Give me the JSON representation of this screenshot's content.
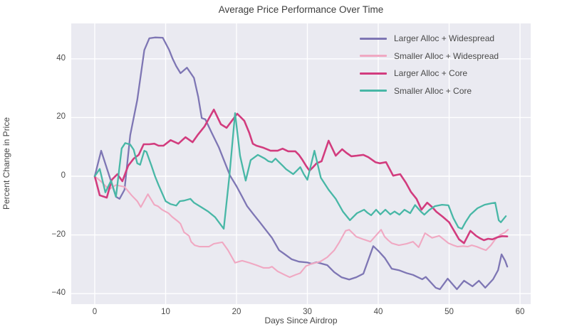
{
  "chart_data": {
    "type": "line",
    "title": "Average Price Performance Over Time",
    "xlabel": "Days Since Airdrop",
    "ylabel": "Percent Change in Price",
    "x_ticks": [
      0,
      10,
      20,
      30,
      40,
      50,
      60
    ],
    "y_ticks": [
      -40,
      -20,
      0,
      20,
      40
    ],
    "xlim": [
      -3.3,
      61.5
    ],
    "ylim": [
      -43.6,
      52
    ],
    "grid": true,
    "plot_background": "#eaeaf1",
    "gridline_color": "#ffffff",
    "legend_position": "upper right",
    "series": [
      {
        "name": "Larger Alloc + Widespread",
        "color": "#7e76b4",
        "width": 2.3,
        "points": [
          [
            0,
            0
          ],
          [
            0.9,
            8.7
          ],
          [
            2,
            0.5
          ],
          [
            3,
            -7
          ],
          [
            3.5,
            -7.7
          ],
          [
            4.2,
            -4.6
          ],
          [
            5,
            14
          ],
          [
            6,
            26
          ],
          [
            7,
            43
          ],
          [
            7.7,
            47
          ],
          [
            8.5,
            47.3
          ],
          [
            9.6,
            47.2
          ],
          [
            10.5,
            43
          ],
          [
            11,
            40
          ],
          [
            11.5,
            37.5
          ],
          [
            12.1,
            35.1
          ],
          [
            13,
            37
          ],
          [
            14,
            33.5
          ],
          [
            14.6,
            27
          ],
          [
            15.1,
            19.8
          ],
          [
            15.6,
            19.4
          ],
          [
            16.5,
            14.8
          ],
          [
            17.5,
            9.9
          ],
          [
            18.3,
            5
          ],
          [
            19.1,
            0.2
          ],
          [
            20,
            -3.4
          ],
          [
            20.8,
            -7
          ],
          [
            21.5,
            -10.2
          ],
          [
            22.4,
            -13
          ],
          [
            23.3,
            -15.7
          ],
          [
            24.2,
            -18.5
          ],
          [
            25,
            -21
          ],
          [
            26,
            -25.2
          ],
          [
            26.7,
            -26.4
          ],
          [
            27.8,
            -28.3
          ],
          [
            28.8,
            -29.1
          ],
          [
            30,
            -29.4
          ],
          [
            30.6,
            -29.8
          ],
          [
            31.3,
            -29.3
          ],
          [
            32.8,
            -30.3
          ],
          [
            33.8,
            -32.7
          ],
          [
            34.8,
            -34.4
          ],
          [
            35.9,
            -35.2
          ],
          [
            36.9,
            -34.4
          ],
          [
            37.9,
            -33.2
          ],
          [
            39.3,
            -23.8
          ],
          [
            40,
            -25.4
          ],
          [
            40.9,
            -27.8
          ],
          [
            41.9,
            -31.5
          ],
          [
            42.9,
            -32
          ],
          [
            44,
            -33
          ],
          [
            44.9,
            -33.6
          ],
          [
            46.2,
            -35.1
          ],
          [
            46.7,
            -34.3
          ],
          [
            48.1,
            -38
          ],
          [
            48.7,
            -38.5
          ],
          [
            49.8,
            -34.9
          ],
          [
            51.1,
            -38.5
          ],
          [
            52.1,
            -35.6
          ],
          [
            53.3,
            -37.5
          ],
          [
            54.2,
            -35.6
          ],
          [
            55.1,
            -38
          ],
          [
            56.2,
            -35.1
          ],
          [
            56.9,
            -32
          ],
          [
            57.4,
            -26.6
          ],
          [
            57.9,
            -28.8
          ],
          [
            58.2,
            -30.8
          ]
        ]
      },
      {
        "name": "Smaller Alloc + Widespread",
        "color": "#f0a8c2",
        "width": 2.1,
        "points": [
          [
            0,
            0
          ],
          [
            1,
            -2
          ],
          [
            2,
            -4.5
          ],
          [
            3,
            -3
          ],
          [
            4.2,
            -3.6
          ],
          [
            5.2,
            -6.5
          ],
          [
            6,
            -8.5
          ],
          [
            6.5,
            -10.5
          ],
          [
            7.5,
            -6.1
          ],
          [
            8.4,
            -9.7
          ],
          [
            8.9,
            -10.2
          ],
          [
            9.5,
            -11.4
          ],
          [
            10.4,
            -12.6
          ],
          [
            10.9,
            -13.8
          ],
          [
            11.8,
            -15.5
          ],
          [
            12.1,
            -16.2
          ],
          [
            12.6,
            -19.1
          ],
          [
            13.3,
            -20.3
          ],
          [
            13.6,
            -22.3
          ],
          [
            14.1,
            -23.5
          ],
          [
            14.8,
            -24
          ],
          [
            16.1,
            -24
          ],
          [
            16.8,
            -23
          ],
          [
            18,
            -22.5
          ],
          [
            18.8,
            -25.2
          ],
          [
            19.8,
            -29.5
          ],
          [
            20.3,
            -29.1
          ],
          [
            20.8,
            -28.8
          ],
          [
            21.8,
            -29.5
          ],
          [
            22.8,
            -30.3
          ],
          [
            23.8,
            -31.2
          ],
          [
            24.6,
            -31.2
          ],
          [
            25,
            -30.8
          ],
          [
            25.8,
            -32.4
          ],
          [
            26.8,
            -33.6
          ],
          [
            27.5,
            -34.4
          ],
          [
            28.3,
            -33.6
          ],
          [
            29,
            -33
          ],
          [
            29.8,
            -30.6
          ],
          [
            30.6,
            -29.8
          ],
          [
            31.8,
            -29.1
          ],
          [
            32.8,
            -27.6
          ],
          [
            33.8,
            -25.2
          ],
          [
            34.5,
            -22.5
          ],
          [
            35.4,
            -18.6
          ],
          [
            35.9,
            -18.2
          ],
          [
            36.9,
            -20.6
          ],
          [
            37.9,
            -21.5
          ],
          [
            38.9,
            -22.3
          ],
          [
            40.4,
            -18.2
          ],
          [
            40.9,
            -20.6
          ],
          [
            41.4,
            -21.8
          ],
          [
            41.9,
            -22.8
          ],
          [
            42.9,
            -23.5
          ],
          [
            44,
            -23
          ],
          [
            44.9,
            -22.3
          ],
          [
            45.7,
            -24.2
          ],
          [
            46.6,
            -19.4
          ],
          [
            47.6,
            -21
          ],
          [
            48.6,
            -20.3
          ],
          [
            49.9,
            -22.8
          ],
          [
            50.6,
            -23.5
          ],
          [
            51.2,
            -24
          ],
          [
            52,
            -23.8
          ],
          [
            52.6,
            -24
          ],
          [
            53.2,
            -23.5
          ],
          [
            53.9,
            -24
          ],
          [
            54.6,
            -24.7
          ],
          [
            55.2,
            -25.2
          ],
          [
            55.9,
            -23.5
          ],
          [
            56.5,
            -21.5
          ],
          [
            57.2,
            -20
          ],
          [
            57.9,
            -19.1
          ],
          [
            58.3,
            -18.2
          ]
        ]
      },
      {
        "name": "Larger Alloc + Core",
        "color": "#d23c7e",
        "width": 2.6,
        "points": [
          [
            0,
            0
          ],
          [
            0.7,
            -6.5
          ],
          [
            1.7,
            -7.3
          ],
          [
            2.4,
            -1.2
          ],
          [
            3.2,
            0.7
          ],
          [
            3.9,
            -1.7
          ],
          [
            4.7,
            3.5
          ],
          [
            5.5,
            6
          ],
          [
            6.2,
            7.3
          ],
          [
            6.9,
            10.9
          ],
          [
            7.7,
            10.9
          ],
          [
            8.4,
            11.1
          ],
          [
            9,
            10.4
          ],
          [
            9.7,
            10.4
          ],
          [
            10.7,
            12.3
          ],
          [
            11.8,
            11.1
          ],
          [
            12.8,
            13.3
          ],
          [
            13.8,
            11.6
          ],
          [
            14.5,
            14
          ],
          [
            15.5,
            17
          ],
          [
            16.8,
            22.7
          ],
          [
            17.8,
            17.7
          ],
          [
            18.6,
            16.5
          ],
          [
            20.1,
            21.3
          ],
          [
            21.1,
            18.9
          ],
          [
            21.8,
            14.8
          ],
          [
            22.3,
            11.1
          ],
          [
            22.8,
            10.4
          ],
          [
            23.8,
            9.7
          ],
          [
            24.8,
            8.7
          ],
          [
            25.8,
            8.7
          ],
          [
            26.5,
            9.4
          ],
          [
            27.3,
            8.5
          ],
          [
            28.3,
            8.5
          ],
          [
            28.8,
            7.3
          ],
          [
            29.3,
            5.6
          ],
          [
            29.8,
            3.6
          ],
          [
            30.3,
            1.9
          ],
          [
            30.8,
            3.1
          ],
          [
            31.3,
            4.4
          ],
          [
            32,
            5.1
          ],
          [
            33,
            12.1
          ],
          [
            34,
            7
          ],
          [
            34.9,
            9.2
          ],
          [
            35.5,
            8
          ],
          [
            36.2,
            6.8
          ],
          [
            37,
            7
          ],
          [
            37.9,
            7.3
          ],
          [
            38.6,
            6.5
          ],
          [
            39.6,
            4.8
          ],
          [
            40.2,
            4.4
          ],
          [
            41.1,
            4.8
          ],
          [
            42.1,
            0.2
          ],
          [
            43.1,
            0.7
          ],
          [
            43.9,
            -2.2
          ],
          [
            44.6,
            -5.3
          ],
          [
            45.4,
            -7.7
          ],
          [
            46.1,
            -11.4
          ],
          [
            46.9,
            -9
          ],
          [
            47.6,
            -10.5
          ],
          [
            48.2,
            -12.1
          ],
          [
            49.1,
            -13.8
          ],
          [
            50,
            -15.7
          ],
          [
            50.6,
            -18.2
          ],
          [
            51.4,
            -21.5
          ],
          [
            52.1,
            -22.8
          ],
          [
            53,
            -18.6
          ],
          [
            53.8,
            -20.3
          ],
          [
            54.4,
            -21.2
          ],
          [
            54.9,
            -21.8
          ],
          [
            55.5,
            -21.3
          ],
          [
            56.1,
            -21.5
          ],
          [
            56.8,
            -20.8
          ],
          [
            57.5,
            -20.4
          ],
          [
            58.2,
            -20.5
          ]
        ]
      },
      {
        "name": "Smaller Alloc + Core",
        "color": "#48b7a6",
        "width": 2.3,
        "points": [
          [
            0,
            0
          ],
          [
            0.7,
            2.5
          ],
          [
            1.5,
            -5.5
          ],
          [
            2.3,
            -1.5
          ],
          [
            3,
            -7
          ],
          [
            3.8,
            9.5
          ],
          [
            4.3,
            11.3
          ],
          [
            5,
            10.8
          ],
          [
            5.5,
            9
          ],
          [
            6,
            4.4
          ],
          [
            6.4,
            3.9
          ],
          [
            7,
            8.7
          ],
          [
            7.3,
            8.3
          ],
          [
            8,
            3.6
          ],
          [
            8.5,
            0
          ],
          [
            9,
            -3
          ],
          [
            10,
            -8.5
          ],
          [
            10.7,
            -9.5
          ],
          [
            11.5,
            -10
          ],
          [
            12,
            -8.5
          ],
          [
            12.6,
            -8.3
          ],
          [
            13.5,
            -7.7
          ],
          [
            14,
            -9
          ],
          [
            15,
            -10.5
          ],
          [
            16,
            -12
          ],
          [
            17,
            -14
          ],
          [
            18.2,
            -17.9
          ],
          [
            19,
            0
          ],
          [
            19.8,
            21.5
          ],
          [
            20.5,
            7
          ],
          [
            21.3,
            -1.5
          ],
          [
            22,
            5.5
          ],
          [
            23,
            7.3
          ],
          [
            24,
            6
          ],
          [
            24.5,
            5.1
          ],
          [
            25,
            4.8
          ],
          [
            25.5,
            6
          ],
          [
            26,
            4.8
          ],
          [
            26.5,
            3.6
          ],
          [
            27,
            2.4
          ],
          [
            28,
            0.7
          ],
          [
            28.5,
            1.9
          ],
          [
            29,
            3.1
          ],
          [
            29.5,
            0.7
          ],
          [
            30,
            -1.2
          ],
          [
            31,
            8.7
          ],
          [
            31.9,
            -0.5
          ],
          [
            32.4,
            -2.4
          ],
          [
            33,
            -4.6
          ],
          [
            34,
            -7.7
          ],
          [
            35,
            -12
          ],
          [
            36,
            -15
          ],
          [
            37,
            -12.6
          ],
          [
            38,
            -11.4
          ],
          [
            38.5,
            -12.5
          ],
          [
            39,
            -13.3
          ],
          [
            39.7,
            -11.4
          ],
          [
            40.3,
            -13
          ],
          [
            41,
            -11.4
          ],
          [
            41.7,
            -13
          ],
          [
            42.3,
            -12
          ],
          [
            43,
            -13.1
          ],
          [
            43.7,
            -11.4
          ],
          [
            44.5,
            -12.6
          ],
          [
            45.2,
            -9.8
          ],
          [
            46,
            -12
          ],
          [
            46.5,
            -13.1
          ],
          [
            47.2,
            -11.5
          ],
          [
            48,
            -10.2
          ],
          [
            49,
            -9.7
          ],
          [
            49.9,
            -9.9
          ],
          [
            50.6,
            -14.3
          ],
          [
            51.3,
            -17.4
          ],
          [
            51.8,
            -17.9
          ],
          [
            52.3,
            -15.7
          ],
          [
            53,
            -13.1
          ],
          [
            54,
            -10.9
          ],
          [
            55,
            -9.7
          ],
          [
            56,
            -9.2
          ],
          [
            56.5,
            -9
          ],
          [
            57,
            -15
          ],
          [
            57.3,
            -15.7
          ],
          [
            58,
            -13.6
          ]
        ]
      }
    ]
  }
}
